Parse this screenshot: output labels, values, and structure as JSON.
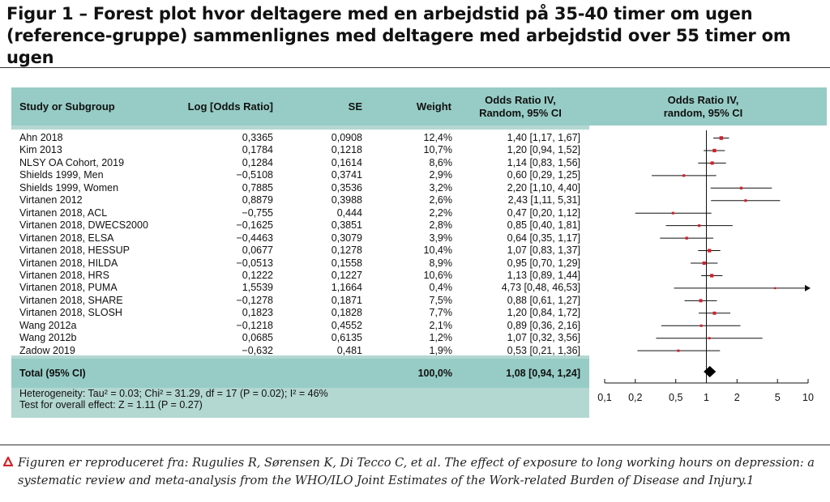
{
  "title": "Figur 1 – Forest plot hvor deltagere med en arbejdstid på 35-40 timer om ugen (reference-gruppe) sammenlignes med deltagere med arbejdstid over 55 timer om ugen",
  "columns": {
    "study": "Study or Subgroup",
    "log_or": "Log [Odds Ratio]",
    "se": "SE",
    "weight": "Weight",
    "or_ci": "Odds Ratio IV, Random, 95% CI",
    "plot": "Odds Ratio IV, random, 95% CI"
  },
  "rows": [
    {
      "study": "Ahn 2018",
      "log_or": "0,3365",
      "se": "0,0908",
      "weight": "12,4%",
      "or_ci": "1,40 [1,17, 1,67]"
    },
    {
      "study": "Kim 2013",
      "log_or": "0,1784",
      "se": "0,1218",
      "weight": "10,7%",
      "or_ci": "1,20 [0,94, 1,52]"
    },
    {
      "study": "NLSY OA Cohort, 2019",
      "log_or": "0,1284",
      "se": "0,1614",
      "weight": "8,6%",
      "or_ci": "1,14 [0,83, 1,56]"
    },
    {
      "study": "Shields 1999, Men",
      "log_or": "−0,5108",
      "se": "0,3741",
      "weight": "2,9%",
      "or_ci": "0,60 [0,29, 1,25]"
    },
    {
      "study": "Shields 1999, Women",
      "log_or": "0,7885",
      "se": "0,3536",
      "weight": "3,2%",
      "or_ci": "2,20 [1,10, 4,40]"
    },
    {
      "study": "Virtanen 2012",
      "log_or": "0,8879",
      "se": "0,3988",
      "weight": "2,6%",
      "or_ci": "2,43 [1,11, 5,31]"
    },
    {
      "study": "Virtanen 2018, ACL",
      "log_or": "−0,755",
      "se": "0,444",
      "weight": "2,2%",
      "or_ci": "0,47 [0,20, 1,12]"
    },
    {
      "study": "Virtanen 2018, DWECS2000",
      "log_or": "−0,1625",
      "se": "0,3851",
      "weight": "2,8%",
      "or_ci": "0,85 [0,40, 1,81]"
    },
    {
      "study": "Virtanen 2018, ELSA",
      "log_or": "−0,4463",
      "se": "0,3079",
      "weight": "3,9%",
      "or_ci": "0,64 [0,35, 1,17]"
    },
    {
      "study": "Virtanen 2018, HESSUP",
      "log_or": "0,0677",
      "se": "0,1278",
      "weight": "10,4%",
      "or_ci": "1,07 [0,83, 1,37]"
    },
    {
      "study": "Virtanen 2018, HILDA",
      "log_or": "−0,0513",
      "se": "0,1558",
      "weight": "8,9%",
      "or_ci": "0,95 [0,70, 1,29]"
    },
    {
      "study": "Virtanen 2018, HRS",
      "log_or": "0,1222",
      "se": "0,1227",
      "weight": "10,6%",
      "or_ci": "1,13 [0,89, 1,44]"
    },
    {
      "study": "Virtanen 2018, PUMA",
      "log_or": "1,5539",
      "se": "1,1664",
      "weight": "0,4%",
      "or_ci": "4,73 [0,48, 46,53]"
    },
    {
      "study": "Virtanen 2018, SHARE",
      "log_or": "−0,1278",
      "se": "0,1871",
      "weight": "7,5%",
      "or_ci": "0,88 [0,61, 1,27]"
    },
    {
      "study": "Virtanen 2018, SLOSH",
      "log_or": "0,1823",
      "se": "0,1828",
      "weight": "7,7%",
      "or_ci": "1,20 [0,84, 1,72]"
    },
    {
      "study": "Wang 2012a",
      "log_or": "−0,1218",
      "se": "0,4552",
      "weight": "2,1%",
      "or_ci": "0,89 [0,36, 2,16]"
    },
    {
      "study": "Wang 2012b",
      "log_or": "0,0685",
      "se": "0,6135",
      "weight": "1,2%",
      "or_ci": "1,07 [0,32, 3,56]"
    },
    {
      "study": "Zadow 2019",
      "log_or": "−0,632",
      "se": "0,481",
      "weight": "1,9%",
      "or_ci": "0,53 [0,21, 1,36]"
    }
  ],
  "total": {
    "label": "Total (95% CI)",
    "weight": "100,0%",
    "or_ci": "1,08 [0,94, 1,24]"
  },
  "heterogeneity": "Heterogeneity: Tau² = 0.03; Chi² = 31.29, df = 17 (P = 0.02); I² = 46%",
  "overall_effect": "Test for overall effect: Z = 1.11 (P = 0.27)",
  "footnote": "Figuren er reproduceret fra: Rugulies R, Sørensen K, Di Tecco C, et al. The effect of exposure to long working hours on depression: a systematic review and meta-analysis from the WHO/ILO Joint Estimates of the Work-related Burden of Disease and Injury.1",
  "colors": {
    "marker": "#d21f2b",
    "header_band": "#96ccc5",
    "table_bg": "#b3d7d1",
    "footnote_icon": "#d2232a"
  },
  "chart_data": {
    "type": "forest",
    "x_scale": "log",
    "xlim": [
      0.1,
      10
    ],
    "x_ticks": [
      0.1,
      0.2,
      0.5,
      1,
      2,
      5,
      10
    ],
    "x_tick_labels": [
      "0,1",
      "0,2",
      "0,5",
      "1",
      "2",
      "5",
      "10"
    ],
    "studies": [
      {
        "or": 1.4,
        "lo": 1.17,
        "hi": 1.67,
        "weight": 12.4
      },
      {
        "or": 1.2,
        "lo": 0.94,
        "hi": 1.52,
        "weight": 10.7
      },
      {
        "or": 1.14,
        "lo": 0.83,
        "hi": 1.56,
        "weight": 8.6
      },
      {
        "or": 0.6,
        "lo": 0.29,
        "hi": 1.25,
        "weight": 2.9
      },
      {
        "or": 2.2,
        "lo": 1.1,
        "hi": 4.4,
        "weight": 3.2
      },
      {
        "or": 2.43,
        "lo": 1.11,
        "hi": 5.31,
        "weight": 2.6
      },
      {
        "or": 0.47,
        "lo": 0.2,
        "hi": 1.12,
        "weight": 2.2
      },
      {
        "or": 0.85,
        "lo": 0.4,
        "hi": 1.81,
        "weight": 2.8
      },
      {
        "or": 0.64,
        "lo": 0.35,
        "hi": 1.17,
        "weight": 3.9
      },
      {
        "or": 1.07,
        "lo": 0.83,
        "hi": 1.37,
        "weight": 10.4
      },
      {
        "or": 0.95,
        "lo": 0.7,
        "hi": 1.29,
        "weight": 8.9
      },
      {
        "or": 1.13,
        "lo": 0.89,
        "hi": 1.44,
        "weight": 10.6
      },
      {
        "or": 4.73,
        "lo": 0.48,
        "hi": 46.53,
        "weight": 0.4
      },
      {
        "or": 0.88,
        "lo": 0.61,
        "hi": 1.27,
        "weight": 7.5
      },
      {
        "or": 1.2,
        "lo": 0.84,
        "hi": 1.72,
        "weight": 7.7
      },
      {
        "or": 0.89,
        "lo": 0.36,
        "hi": 2.16,
        "weight": 2.1
      },
      {
        "or": 1.07,
        "lo": 0.32,
        "hi": 3.56,
        "weight": 1.2
      },
      {
        "or": 0.53,
        "lo": 0.21,
        "hi": 1.36,
        "weight": 1.9
      }
    ],
    "total": {
      "or": 1.08,
      "lo": 0.94,
      "hi": 1.24
    }
  }
}
